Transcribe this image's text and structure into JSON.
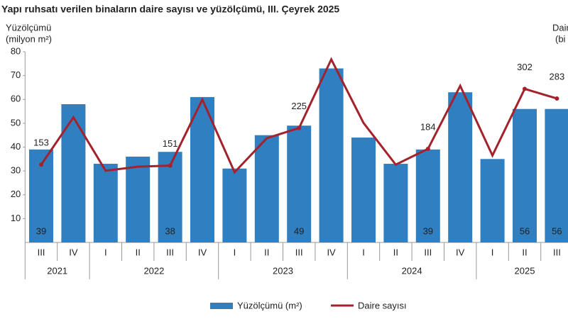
{
  "chart_data": {
    "type": "bar-line",
    "title": "Yapı ruhsatı verilen binaların daire sayısı ve yüzölçümü, III. Çeyrek 2025",
    "y_label": [
      "Yüzölçümü",
      "(milyon m²)"
    ],
    "y2_label": [
      "Dair",
      "(bi"
    ],
    "categories": [
      "III",
      "IV",
      "I",
      "II",
      "III",
      "IV",
      "I",
      "II",
      "III",
      "IV",
      "I",
      "II",
      "III",
      "IV",
      "I",
      "II",
      "III"
    ],
    "years": [
      "2021",
      "2021",
      "2022",
      "2022",
      "2022",
      "2022",
      "2023",
      "2023",
      "2023",
      "2023",
      "2024",
      "2024",
      "2024",
      "2024",
      "2025",
      "2025",
      "2025"
    ],
    "series": [
      {
        "name": "Yüzölçümü (m²)",
        "color": "#2f7fc1",
        "kind": "bar",
        "values": [
          39,
          58,
          33,
          36,
          38,
          61,
          31,
          45,
          49,
          73,
          44,
          33,
          39,
          63,
          35,
          56,
          56
        ],
        "value_labels": [
          39,
          null,
          null,
          null,
          38,
          null,
          null,
          null,
          49,
          null,
          null,
          null,
          39,
          null,
          null,
          56,
          56
        ]
      },
      {
        "name": "Daire sayısı",
        "color": "#a3222c",
        "kind": "line",
        "axis": "y2",
        "values": [
          153,
          246,
          141,
          149,
          151,
          281,
          138,
          205,
          225,
          360,
          235,
          153,
          184,
          308,
          171,
          302,
          283
        ],
        "value_labels": [
          153,
          null,
          null,
          null,
          151,
          null,
          null,
          null,
          225,
          null,
          null,
          null,
          184,
          null,
          null,
          302,
          283
        ]
      }
    ],
    "ylim": [
      0,
      80
    ],
    "yticks": [
      10,
      20,
      30,
      40,
      50,
      60,
      70,
      80
    ],
    "y2lim": [
      0,
      375
    ]
  }
}
